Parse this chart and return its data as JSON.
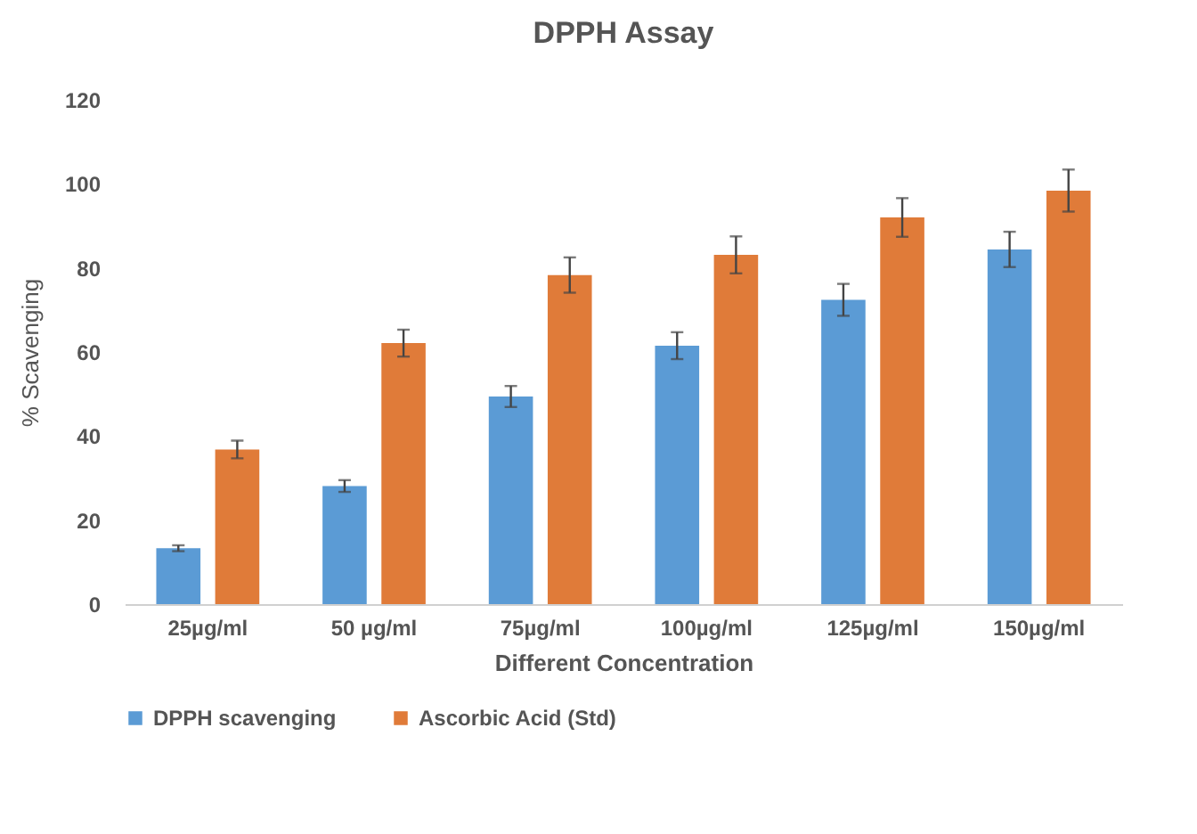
{
  "chart_data": {
    "type": "bar",
    "title": "DPPH Assay",
    "xlabel": "Different Concentration",
    "ylabel": "% Scavenging",
    "categories": [
      "25µg/ml",
      "50 µg/ml",
      "75µg/ml",
      "100µg/ml",
      "125µg/ml",
      "150µg/ml"
    ],
    "series": [
      {
        "name": "DPPH scavenging",
        "color": "#5b9bd5",
        "values": [
          13.3,
          28.1,
          49.4,
          61.5,
          72.4,
          84.4
        ],
        "errors": [
          0.7,
          1.4,
          2.5,
          3.2,
          3.8,
          4.2
        ]
      },
      {
        "name": "Ascorbic Acid (Std)",
        "color": "#e07b39",
        "values": [
          36.8,
          62.1,
          78.3,
          83.1,
          92.0,
          98.4
        ],
        "errors": [
          2.1,
          3.2,
          4.2,
          4.4,
          4.6,
          5.0
        ]
      }
    ],
    "ylim": [
      0,
      120
    ],
    "yticks": [
      0,
      20,
      40,
      60,
      80,
      100,
      120
    ],
    "grid": false,
    "legend": "bottom"
  }
}
